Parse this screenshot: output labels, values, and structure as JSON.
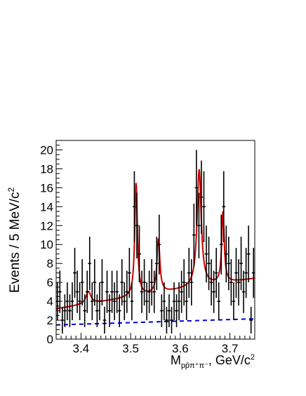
{
  "chart_data": {
    "type": "scatter",
    "ylabel": "Events / 5 MeV/c",
    "ylabel_sup": "2",
    "xlabel": {
      "prefix": "M",
      "subscript": "pp̄π⁺π⁻",
      "suffix": ", GeV/c",
      "suffix_sup": "2"
    },
    "xlim": [
      3.35,
      3.75
    ],
    "ylim": [
      0,
      21
    ],
    "x_ticks": [
      "3.4",
      "3.5",
      "3.6",
      "3.7"
    ],
    "y_ticks": [
      "0",
      "2",
      "4",
      "6",
      "8",
      "10",
      "12",
      "14",
      "16",
      "18",
      "20"
    ],
    "grid": false,
    "series": [
      {
        "kind": "data",
        "color": "#000000",
        "points": [
          {
            "x": 3.3525,
            "y": 4
          },
          {
            "x": 3.3575,
            "y": 5
          },
          {
            "x": 3.3625,
            "y": 2
          },
          {
            "x": 3.3675,
            "y": 3
          },
          {
            "x": 3.3725,
            "y": 4
          },
          {
            "x": 3.3775,
            "y": 3
          },
          {
            "x": 3.3825,
            "y": 4
          },
          {
            "x": 3.3875,
            "y": 7
          },
          {
            "x": 3.3925,
            "y": 5
          },
          {
            "x": 3.3975,
            "y": 4
          },
          {
            "x": 3.4025,
            "y": 6
          },
          {
            "x": 3.4075,
            "y": 3
          },
          {
            "x": 3.4125,
            "y": 5
          },
          {
            "x": 3.4175,
            "y": 8
          },
          {
            "x": 3.4225,
            "y": 4
          },
          {
            "x": 3.4275,
            "y": 6
          },
          {
            "x": 3.4325,
            "y": 3
          },
          {
            "x": 3.4375,
            "y": 4
          },
          {
            "x": 3.4425,
            "y": 6
          },
          {
            "x": 3.4475,
            "y": 2
          },
          {
            "x": 3.4525,
            "y": 5
          },
          {
            "x": 3.4575,
            "y": 3
          },
          {
            "x": 3.4625,
            "y": 5
          },
          {
            "x": 3.4675,
            "y": 4
          },
          {
            "x": 3.4725,
            "y": 5
          },
          {
            "x": 3.4775,
            "y": 3
          },
          {
            "x": 3.4825,
            "y": 6
          },
          {
            "x": 3.4875,
            "y": 4
          },
          {
            "x": 3.4925,
            "y": 5
          },
          {
            "x": 3.4975,
            "y": 7
          },
          {
            "x": 3.5025,
            "y": 4
          },
          {
            "x": 3.5075,
            "y": 14
          },
          {
            "x": 3.5125,
            "y": 12
          },
          {
            "x": 3.5175,
            "y": 9
          },
          {
            "x": 3.5225,
            "y": 5
          },
          {
            "x": 3.5275,
            "y": 6
          },
          {
            "x": 3.5325,
            "y": 4
          },
          {
            "x": 3.5375,
            "y": 5
          },
          {
            "x": 3.5425,
            "y": 6
          },
          {
            "x": 3.5475,
            "y": 5
          },
          {
            "x": 3.5525,
            "y": 8
          },
          {
            "x": 3.5575,
            "y": 10
          },
          {
            "x": 3.5625,
            "y": 3
          },
          {
            "x": 3.5675,
            "y": 4
          },
          {
            "x": 3.5725,
            "y": 2
          },
          {
            "x": 3.5775,
            "y": 3
          },
          {
            "x": 3.5825,
            "y": 2
          },
          {
            "x": 3.5875,
            "y": 4
          },
          {
            "x": 3.5925,
            "y": 3
          },
          {
            "x": 3.5975,
            "y": 4
          },
          {
            "x": 3.6025,
            "y": 5
          },
          {
            "x": 3.6075,
            "y": 6
          },
          {
            "x": 3.6125,
            "y": 4
          },
          {
            "x": 3.6175,
            "y": 7
          },
          {
            "x": 3.6225,
            "y": 6
          },
          {
            "x": 3.6275,
            "y": 11
          },
          {
            "x": 3.6325,
            "y": 16
          },
          {
            "x": 3.6375,
            "y": 12
          },
          {
            "x": 3.6425,
            "y": 15
          },
          {
            "x": 3.6475,
            "y": 14
          },
          {
            "x": 3.6525,
            "y": 9
          },
          {
            "x": 3.6575,
            "y": 8
          },
          {
            "x": 3.6625,
            "y": 6
          },
          {
            "x": 3.6675,
            "y": 5
          },
          {
            "x": 3.6725,
            "y": 7
          },
          {
            "x": 3.6775,
            "y": 4
          },
          {
            "x": 3.6825,
            "y": 10
          },
          {
            "x": 3.6875,
            "y": 14
          },
          {
            "x": 3.6925,
            "y": 9
          },
          {
            "x": 3.6975,
            "y": 8
          },
          {
            "x": 3.7025,
            "y": 6
          },
          {
            "x": 3.7075,
            "y": 4
          },
          {
            "x": 3.7125,
            "y": 7
          },
          {
            "x": 3.7175,
            "y": 6
          },
          {
            "x": 3.7225,
            "y": 8
          },
          {
            "x": 3.7275,
            "y": 5
          },
          {
            "x": 3.7325,
            "y": 7
          },
          {
            "x": 3.7375,
            "y": 9
          },
          {
            "x": 3.7425,
            "y": 2
          },
          {
            "x": 3.7475,
            "y": 7
          }
        ]
      },
      {
        "kind": "fit",
        "color": "#cc0000",
        "line": "solid",
        "baseline": {
          "start": 3.2,
          "end": 6.4
        },
        "peaks": [
          {
            "mass": 3.415,
            "height": 1.3,
            "width": 0.006
          },
          {
            "mass": 3.511,
            "height": 12.0,
            "width": 0.0032
          },
          {
            "mass": 3.556,
            "height": 5.7,
            "width": 0.0035
          },
          {
            "mass": 3.638,
            "height": 12.4,
            "width": 0.005
          },
          {
            "mass": 3.686,
            "height": 7.5,
            "width": 0.003
          }
        ]
      },
      {
        "kind": "background",
        "color": "#0000dd",
        "line": "dashed",
        "start": 1.5,
        "end": 2.15
      }
    ]
  }
}
